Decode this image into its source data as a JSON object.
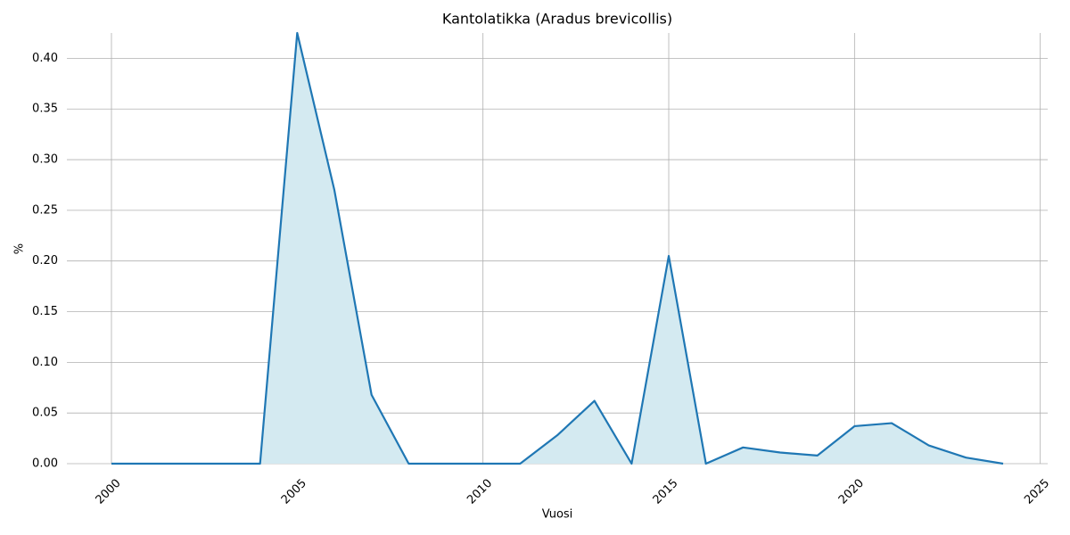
{
  "chart_data": {
    "type": "line",
    "title": "Kantolatikka (Aradus brevicollis)",
    "x_label": "Vuosi",
    "y_label": "%",
    "x": [
      2000,
      2001,
      2002,
      2003,
      2004,
      2005,
      2006,
      2007,
      2008,
      2009,
      2010,
      2011,
      2012,
      2013,
      2014,
      2015,
      2016,
      2017,
      2018,
      2019,
      2020,
      2021,
      2022,
      2023,
      2024
    ],
    "series": [
      {
        "color": "#1f77b4",
        "fill": "#d4eaf1",
        "values": [
          0,
          0,
          0,
          0,
          0,
          0.425,
          0.27,
          0.068,
          0,
          0,
          0,
          0,
          0.028,
          0.062,
          0,
          0.205,
          0,
          0.016,
          0.011,
          0.008,
          0.037,
          0.04,
          0.018,
          0.006,
          0
        ]
      }
    ],
    "xlim": [
      1998.8,
      2025.2
    ],
    "xticks": [
      2000,
      2005,
      2010,
      2015,
      2020,
      2025
    ],
    "ylim": [
      0,
      0.425
    ],
    "yticks": [
      {
        "value": 0,
        "label": "0.00"
      },
      {
        "value": 0.05,
        "label": "0.05"
      },
      {
        "value": 0.1,
        "label": "0.10"
      },
      {
        "value": 0.15,
        "label": "0.15"
      },
      {
        "value": 0.2,
        "label": "0.20"
      },
      {
        "value": 0.25,
        "label": "0.25"
      },
      {
        "value": 0.3,
        "label": "0.30"
      },
      {
        "value": 0.35,
        "label": "0.35"
      },
      {
        "value": 0.4,
        "label": "0.40"
      }
    ],
    "grid": true
  }
}
